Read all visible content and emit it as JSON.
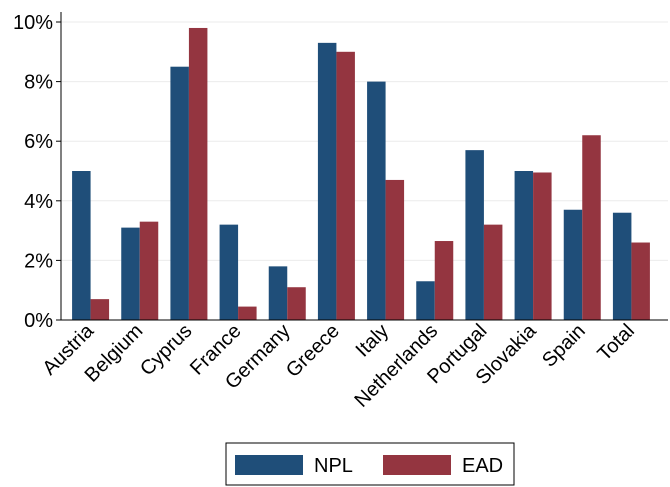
{
  "chart_data": {
    "type": "bar",
    "categories": [
      "Austria",
      "Belgium",
      "Cyprus",
      "France",
      "Germany",
      "Greece",
      "Italy",
      "Netherlands",
      "Portugal",
      "Slovakia",
      "Spain",
      "Total"
    ],
    "series": [
      {
        "name": "NPL",
        "color": "#1f4e79",
        "values": [
          5.0,
          3.1,
          8.5,
          3.2,
          1.8,
          9.3,
          8.0,
          1.3,
          5.7,
          5.0,
          3.7,
          3.6
        ]
      },
      {
        "name": "EAD",
        "color": "#943540",
        "values": [
          0.7,
          3.3,
          9.8,
          0.45,
          1.1,
          9.0,
          4.7,
          2.65,
          3.2,
          4.95,
          6.2,
          2.6
        ]
      }
    ],
    "yticks": [
      "0%",
      "2%",
      "4%",
      "6%",
      "8%",
      "10%"
    ],
    "ylim": [
      0,
      10
    ],
    "grid": true,
    "legend_position": "bottom"
  }
}
